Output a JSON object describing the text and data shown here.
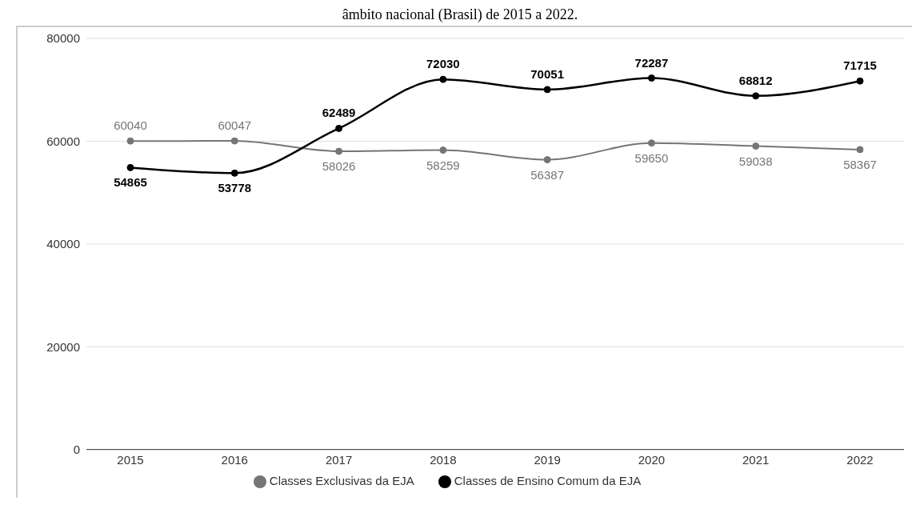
{
  "chart_data": {
    "type": "line",
    "title": "âmbito nacional (Brasil) de 2015 a 2022.",
    "categories": [
      "2015",
      "2016",
      "2017",
      "2018",
      "2019",
      "2020",
      "2021",
      "2022"
    ],
    "series": [
      {
        "name": "Classes Exclusivas da EJA",
        "color": "#757575",
        "values": [
          60040,
          60047,
          58026,
          58259,
          56387,
          59650,
          59038,
          58367
        ]
      },
      {
        "name": "Classes de Ensino Comum da EJA",
        "color": "#000000",
        "values": [
          54865,
          53778,
          62489,
          72030,
          70051,
          72287,
          68812,
          71715
        ]
      }
    ],
    "ylim": [
      0,
      80000
    ],
    "yticks": [
      0,
      20000,
      40000,
      60000,
      80000
    ],
    "grid": "y",
    "legend": "bottom",
    "marker": "circle",
    "line_style": "solid",
    "data_labels": true
  }
}
